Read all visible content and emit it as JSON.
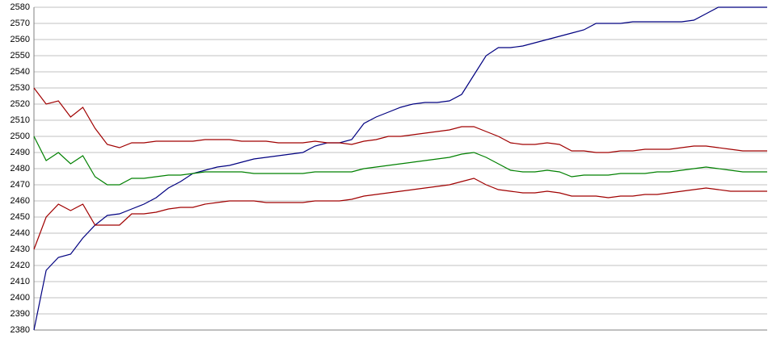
{
  "chart_data": {
    "type": "line",
    "categories": [
      null,
      null,
      null,
      null,
      null,
      null,
      null,
      null,
      null,
      null,
      null,
      null,
      null,
      null,
      null,
      null,
      null,
      null,
      null,
      null,
      null,
      null,
      null,
      null,
      null,
      null,
      null,
      null,
      null,
      null,
      null,
      null,
      null,
      null,
      null,
      null,
      null,
      null,
      null,
      null,
      null,
      null,
      null,
      null,
      null,
      null,
      null,
      null,
      null,
      null,
      null,
      null,
      null,
      null,
      null,
      null,
      null,
      null,
      null,
      null,
      null
    ],
    "series": [
      {
        "color": "#000080",
        "values": [
          2380,
          2417,
          2425,
          2427,
          2437,
          2445,
          2451,
          2452,
          2455,
          2458,
          2462,
          2468,
          2472,
          2477,
          2479,
          2481,
          2482,
          2484,
          2486,
          2487,
          2488,
          2489,
          2490,
          2494,
          2496,
          2496,
          2498,
          2508,
          2512,
          2515,
          2518,
          2520,
          2521,
          2521,
          2522,
          2526,
          2538,
          2550,
          2555,
          2555,
          2556,
          2558,
          2560,
          2562,
          2564,
          2566,
          2570,
          2570,
          2570,
          2571,
          2571,
          2571,
          2571,
          2571,
          2572,
          2576,
          2580,
          2580,
          2580,
          2580,
          2580
        ]
      },
      {
        "color": "#008000",
        "values": [
          2500,
          2485,
          2490,
          2483,
          2488,
          2475,
          2470,
          2470,
          2474,
          2474,
          2475,
          2476,
          2476,
          2477,
          2478,
          2478,
          2478,
          2478,
          2477,
          2477,
          2477,
          2477,
          2477,
          2478,
          2478,
          2478,
          2478,
          2480,
          2481,
          2482,
          2483,
          2484,
          2485,
          2486,
          2487,
          2489,
          2490,
          2487,
          2483,
          2479,
          2478,
          2478,
          2479,
          2478,
          2475,
          2476,
          2476,
          2476,
          2477,
          2477,
          2477,
          2478,
          2478,
          2479,
          2480,
          2481,
          2480,
          2479,
          2478,
          2478,
          2478
        ]
      },
      {
        "color": "#a00000",
        "values": [
          2530,
          2520,
          2522,
          2512,
          2518,
          2505,
          2495,
          2493,
          2496,
          2496,
          2497,
          2497,
          2497,
          2497,
          2498,
          2498,
          2498,
          2497,
          2497,
          2497,
          2496,
          2496,
          2496,
          2497,
          2496,
          2496,
          2495,
          2497,
          2498,
          2500,
          2500,
          2501,
          2502,
          2503,
          2504,
          2506,
          2506,
          2503,
          2500,
          2496,
          2495,
          2495,
          2496,
          2495,
          2491,
          2491,
          2490,
          2490,
          2491,
          2491,
          2492,
          2492,
          2492,
          2493,
          2494,
          2494,
          2493,
          2492,
          2491,
          2491,
          2491
        ]
      },
      {
        "color": "#a00000",
        "values": [
          2430,
          2450,
          2458,
          2454,
          2458,
          2445,
          2445,
          2445,
          2452,
          2452,
          2453,
          2455,
          2456,
          2456,
          2458,
          2459,
          2460,
          2460,
          2460,
          2459,
          2459,
          2459,
          2459,
          2460,
          2460,
          2460,
          2461,
          2463,
          2464,
          2465,
          2466,
          2467,
          2468,
          2469,
          2470,
          2472,
          2474,
          2470,
          2467,
          2466,
          2465,
          2465,
          2466,
          2465,
          2463,
          2463,
          2463,
          2462,
          2463,
          2463,
          2464,
          2464,
          2465,
          2466,
          2467,
          2468,
          2467,
          2466,
          2466,
          2466,
          2466
        ]
      }
    ],
    "ylim": [
      2380,
      2580
    ],
    "yticks": [
      2380,
      2390,
      2400,
      2410,
      2420,
      2430,
      2440,
      2450,
      2460,
      2470,
      2480,
      2490,
      2500,
      2510,
      2520,
      2530,
      2540,
      2550,
      2560,
      2570,
      2580
    ],
    "grid": true
  }
}
